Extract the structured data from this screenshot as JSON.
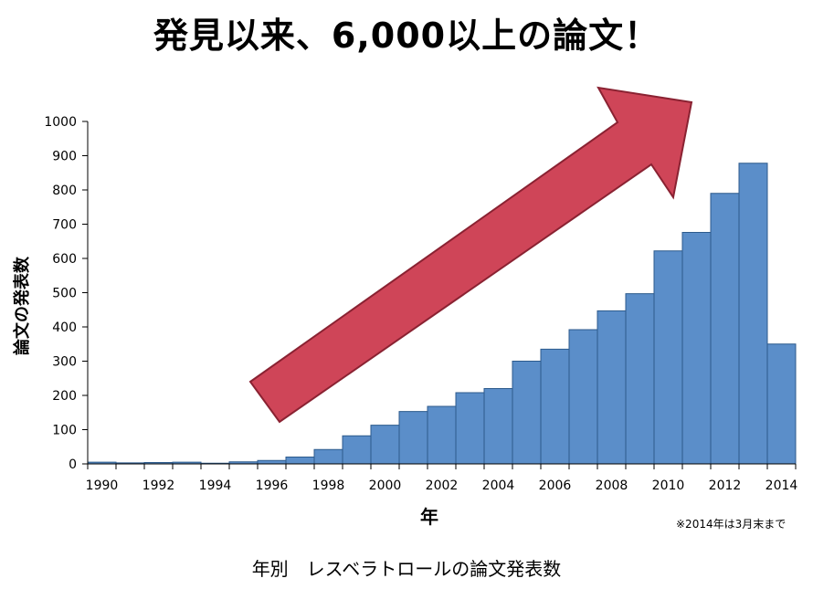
{
  "chart_data": {
    "type": "bar",
    "title": "発見以来、6,000以上の論文！",
    "xlabel": "年",
    "ylabel": "論文の発表数",
    "note": "※2014年は3月末まで",
    "caption": "年別　レスベラトロールの論文発表数",
    "categories": [
      "1990",
      "1991",
      "1992",
      "1993",
      "1994",
      "1995",
      "1996",
      "1997",
      "1998",
      "1999",
      "2000",
      "2001",
      "2002",
      "2003",
      "2004",
      "2005",
      "2006",
      "2007",
      "2008",
      "2009",
      "2010",
      "2011",
      "2012",
      "2013",
      "2014"
    ],
    "x_tick_labels": [
      "1990",
      "1992",
      "1994",
      "1996",
      "1998",
      "2000",
      "2002",
      "2004",
      "2006",
      "2008",
      "2010",
      "2012",
      "2014"
    ],
    "values": [
      5,
      3,
      4,
      5,
      2,
      6,
      10,
      20,
      42,
      82,
      113,
      153,
      168,
      208,
      220,
      300,
      335,
      392,
      447,
      497,
      622,
      676,
      790,
      878,
      350
    ],
    "ylim": [
      0,
      1000
    ],
    "yticks": [
      0,
      100,
      200,
      300,
      400,
      500,
      600,
      700,
      800,
      900,
      1000
    ],
    "bar_color": "#5b8ec9",
    "bar_edge_color": "#2c5a8c",
    "arrow_color": "#cf4558",
    "arrow_edge_color": "#8a2232",
    "grid": false,
    "legend": "none"
  }
}
